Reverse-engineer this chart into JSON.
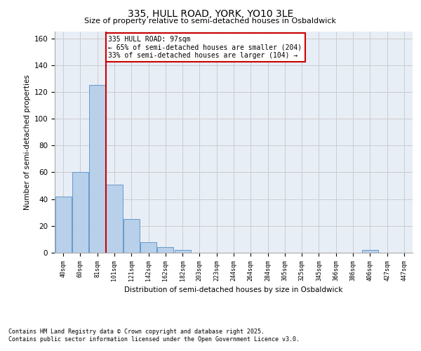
{
  "title1": "335, HULL ROAD, YORK, YO10 3LE",
  "title2": "Size of property relative to semi-detached houses in Osbaldwick",
  "xlabel": "Distribution of semi-detached houses by size in Osbaldwick",
  "ylabel": "Number of semi-detached properties",
  "bar_labels": [
    "40sqm",
    "60sqm",
    "81sqm",
    "101sqm",
    "121sqm",
    "142sqm",
    "162sqm",
    "182sqm",
    "203sqm",
    "223sqm",
    "244sqm",
    "264sqm",
    "284sqm",
    "305sqm",
    "325sqm",
    "345sqm",
    "366sqm",
    "386sqm",
    "406sqm",
    "427sqm",
    "447sqm"
  ],
  "bar_values": [
    42,
    60,
    125,
    51,
    25,
    8,
    4,
    2,
    0,
    0,
    0,
    0,
    0,
    0,
    0,
    0,
    0,
    0,
    2,
    0,
    0
  ],
  "bar_color": "#b8d0ea",
  "bar_edge_color": "#6699cc",
  "grid_color": "#cccccc",
  "bg_color": "#e8eef6",
  "vline_x_index": 3,
  "vline_color": "#cc0000",
  "annotation_title": "335 HULL ROAD: 97sqm",
  "annotation_line1": "← 65% of semi-detached houses are smaller (204)",
  "annotation_line2": "33% of semi-detached houses are larger (104) →",
  "annotation_box_color": "#ffffff",
  "annotation_edge_color": "#cc0000",
  "ylim": [
    0,
    165
  ],
  "yticks": [
    0,
    20,
    40,
    60,
    80,
    100,
    120,
    140,
    160
  ],
  "footer1": "Contains HM Land Registry data © Crown copyright and database right 2025.",
  "footer2": "Contains public sector information licensed under the Open Government Licence v3.0."
}
